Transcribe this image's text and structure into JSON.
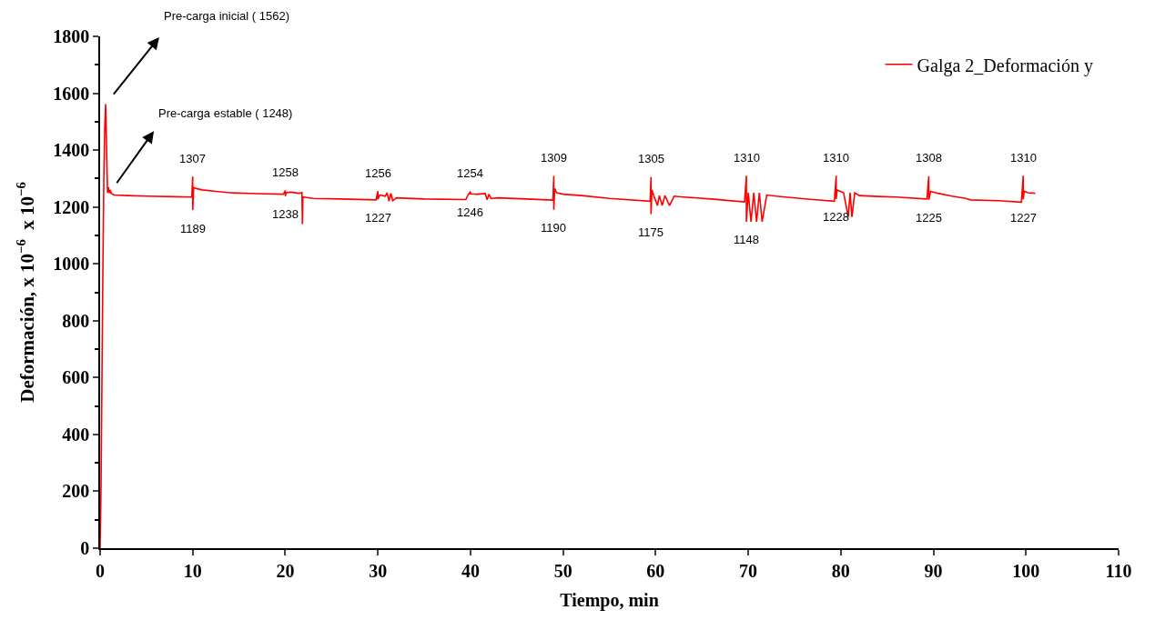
{
  "chart_data": {
    "type": "line",
    "xlabel": "Tiempo, min",
    "ylabel": "Deformación, x 10$^{−6}$  x 10$^{−6}$",
    "xlim": [
      0,
      110
    ],
    "xticks": [
      0,
      10,
      20,
      30,
      40,
      50,
      60,
      70,
      80,
      90,
      100,
      110
    ],
    "ylim": [
      0,
      1800
    ],
    "yticks": [
      0,
      200,
      400,
      600,
      800,
      1000,
      1200,
      1400,
      1600,
      1800
    ],
    "legend": "top right",
    "marker": "none",
    "line_style": "solid",
    "series": [
      {
        "name": "Galga 2_Deformación y",
        "color": "#ff0000",
        "x": [
          0,
          0.1,
          0.2,
          0.3,
          0.4,
          0.5,
          0.6,
          0.7,
          0.8,
          0.9,
          1.0,
          1.1,
          1.2,
          1.5,
          3,
          5,
          8,
          9.9,
          10,
          10,
          10.1,
          10.5,
          11,
          12.5,
          14,
          17,
          19.8,
          20,
          20,
          20.1,
          20.6,
          21.5,
          21.8,
          21.85,
          21.9,
          23,
          26,
          29.8,
          30,
          30,
          30.2,
          30.8,
          31,
          31.2,
          31.4,
          31.6,
          32,
          35,
          39.5,
          39.7,
          40,
          40,
          40.8,
          41.6,
          41.8,
          42,
          42.2,
          43,
          46,
          48.9,
          49,
          49,
          49.1,
          49.3,
          50,
          52,
          55,
          59.4,
          59.5,
          59.5,
          59.6,
          59.8,
          60.2,
          60.4,
          60.7,
          61,
          61.5,
          62,
          63,
          66,
          69.6,
          69.8,
          69.8,
          70.0,
          70.3,
          70.6,
          70.9,
          71.2,
          71.5,
          72,
          73,
          74,
          77,
          79.3,
          79.5,
          79.5,
          79.6,
          80.3,
          80.8,
          81,
          81.2,
          81.5,
          82,
          84,
          86,
          89.3,
          89.5,
          89.5,
          89.7,
          90.5,
          92,
          93.5,
          94,
          97,
          99.5,
          99.7,
          99.7,
          99.8,
          100.2,
          101
        ],
        "values": [
          0,
          220,
          600,
          980,
          1300,
          1480,
          1562,
          1400,
          1250,
          1270,
          1248,
          1260,
          1248,
          1242,
          1240,
          1238,
          1236,
          1235,
          1307,
          1189,
          1268,
          1264,
          1260,
          1255,
          1250,
          1247,
          1245,
          1258,
          1238,
          1250,
          1252,
          1248,
          1250,
          1140,
          1235,
          1230,
          1228,
          1225,
          1256,
          1227,
          1242,
          1238,
          1250,
          1220,
          1248,
          1222,
          1232,
          1228,
          1226,
          1240,
          1254,
          1246,
          1245,
          1247,
          1225,
          1245,
          1230,
          1232,
          1228,
          1224,
          1309,
          1190,
          1265,
          1250,
          1245,
          1240,
          1230,
          1220,
          1305,
          1175,
          1260,
          1240,
          1205,
          1240,
          1205,
          1240,
          1205,
          1238,
          1235,
          1228,
          1218,
          1310,
          1148,
          1250,
          1148,
          1250,
          1148,
          1250,
          1148,
          1242,
          1238,
          1235,
          1226,
          1220,
          1310,
          1228,
          1260,
          1250,
          1165,
          1250,
          1165,
          1250,
          1240,
          1237,
          1235,
          1228,
          1308,
          1225,
          1255,
          1248,
          1238,
          1230,
          1225,
          1222,
          1217,
          1310,
          1227,
          1255,
          1250,
          1248
        ]
      }
    ],
    "annotations": [
      {
        "text": "Pre-carga inicial ( 1562)",
        "x": 0.6,
        "y": 1562
      },
      {
        "text": "Pre-carga estable ( 1248)",
        "x": 1.0,
        "y": 1248
      },
      {
        "text": "1307",
        "x": 10,
        "y": 1307
      },
      {
        "text": "1189",
        "x": 10,
        "y": 1189
      },
      {
        "text": "1258",
        "x": 20,
        "y": 1258
      },
      {
        "text": "1238",
        "x": 20,
        "y": 1238
      },
      {
        "text": "1256",
        "x": 30,
        "y": 1256
      },
      {
        "text": "1227",
        "x": 30,
        "y": 1227
      },
      {
        "text": "1254",
        "x": 40,
        "y": 1254
      },
      {
        "text": "1246",
        "x": 40,
        "y": 1246
      },
      {
        "text": "1309",
        "x": 49,
        "y": 1309
      },
      {
        "text": "1190",
        "x": 49,
        "y": 1190
      },
      {
        "text": "1305",
        "x": 59.5,
        "y": 1305
      },
      {
        "text": "1175",
        "x": 59.5,
        "y": 1175
      },
      {
        "text": "1310",
        "x": 69.8,
        "y": 1310
      },
      {
        "text": "1148",
        "x": 69.8,
        "y": 1148
      },
      {
        "text": "1310",
        "x": 79.5,
        "y": 1310
      },
      {
        "text": "1228",
        "x": 79.5,
        "y": 1228
      },
      {
        "text": "1308",
        "x": 89.5,
        "y": 1308
      },
      {
        "text": "1225",
        "x": 89.5,
        "y": 1225
      },
      {
        "text": "1310",
        "x": 99.7,
        "y": 1310
      },
      {
        "text": "1227",
        "x": 99.7,
        "y": 1227
      }
    ]
  }
}
